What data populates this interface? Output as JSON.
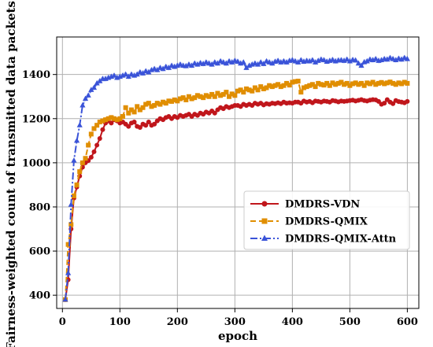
{
  "chart_data": {
    "type": "line",
    "title": "",
    "xlabel": "epoch",
    "ylabel": "Fairness-weighted count of transmitted data packets",
    "xlim": [
      -10,
      620
    ],
    "ylim": [
      340,
      1570
    ],
    "xticks": [
      0,
      100,
      200,
      300,
      400,
      500,
      600
    ],
    "yticks": [
      400,
      600,
      800,
      1000,
      1200,
      1400
    ],
    "grid": true,
    "legend_position": "center-right",
    "series": [
      {
        "name": "DMDRS-VDN",
        "color": "#c0161b",
        "band_color": "#f5a3c6",
        "marker": "circle",
        "dash": "solid",
        "x": [
          5,
          10,
          15,
          20,
          25,
          30,
          35,
          40,
          45,
          50,
          55,
          60,
          65,
          70,
          75,
          80,
          85,
          90,
          95,
          100,
          105,
          110,
          115,
          120,
          125,
          130,
          135,
          140,
          145,
          150,
          155,
          160,
          165,
          170,
          175,
          180,
          185,
          190,
          195,
          200,
          205,
          210,
          215,
          220,
          225,
          230,
          235,
          240,
          245,
          250,
          255,
          260,
          265,
          270,
          275,
          280,
          285,
          290,
          295,
          300,
          305,
          310,
          315,
          320,
          325,
          330,
          335,
          340,
          345,
          350,
          355,
          360,
          365,
          370,
          375,
          380,
          385,
          390,
          395,
          400,
          405,
          410,
          415,
          420,
          425,
          430,
          435,
          440,
          445,
          450,
          455,
          460,
          465,
          470,
          475,
          480,
          485,
          490,
          495,
          500,
          505,
          510,
          515,
          520,
          525,
          530,
          535,
          540,
          545,
          550,
          555,
          560,
          565,
          570,
          575,
          580,
          585,
          590,
          595,
          600
        ],
        "y": [
          380,
          470,
          700,
          840,
          890,
          940,
          980,
          1000,
          1010,
          1025,
          1050,
          1080,
          1110,
          1150,
          1180,
          1190,
          1180,
          1195,
          1190,
          1180,
          1185,
          1175,
          1165,
          1180,
          1185,
          1165,
          1160,
          1175,
          1170,
          1185,
          1170,
          1175,
          1190,
          1200,
          1195,
          1205,
          1210,
          1200,
          1210,
          1205,
          1215,
          1210,
          1215,
          1220,
          1210,
          1220,
          1215,
          1225,
          1220,
          1230,
          1225,
          1235,
          1225,
          1240,
          1250,
          1245,
          1255,
          1250,
          1255,
          1260,
          1260,
          1255,
          1265,
          1260,
          1265,
          1260,
          1270,
          1265,
          1270,
          1262,
          1268,
          1265,
          1270,
          1268,
          1272,
          1268,
          1275,
          1270,
          1272,
          1270,
          1275,
          1275,
          1270,
          1280,
          1275,
          1278,
          1272,
          1280,
          1278,
          1275,
          1280,
          1278,
          1275,
          1282,
          1280,
          1276,
          1280,
          1278,
          1280,
          1282,
          1284,
          1280,
          1283,
          1286,
          1282,
          1280,
          1284,
          1286,
          1285,
          1278,
          1265,
          1270,
          1286,
          1275,
          1268,
          1282,
          1277,
          1275,
          1272,
          1278
        ]
      },
      {
        "name": "DMDRS-QMIX",
        "color": "#e08e00",
        "band_color": "#f5a3c6",
        "marker": "square",
        "dash": "dashed",
        "x": [
          5,
          10,
          15,
          20,
          25,
          30,
          35,
          40,
          45,
          50,
          55,
          60,
          65,
          70,
          75,
          80,
          85,
          90,
          95,
          100,
          105,
          110,
          115,
          120,
          125,
          130,
          135,
          140,
          145,
          150,
          155,
          160,
          165,
          170,
          175,
          180,
          185,
          190,
          195,
          200,
          205,
          210,
          215,
          220,
          225,
          230,
          235,
          240,
          245,
          250,
          255,
          260,
          265,
          270,
          275,
          280,
          285,
          290,
          295,
          300,
          305,
          310,
          315,
          320,
          325,
          330,
          335,
          340,
          345,
          350,
          355,
          360,
          365,
          370,
          375,
          380,
          385,
          390,
          395,
          400,
          405,
          410,
          415,
          420,
          425,
          430,
          435,
          440,
          445,
          450,
          455,
          460,
          465,
          470,
          475,
          480,
          485,
          490,
          495,
          500,
          505,
          510,
          515,
          520,
          525,
          530,
          535,
          540,
          545,
          550,
          555,
          560,
          565,
          570,
          575,
          580,
          585,
          590,
          595,
          600
        ],
        "y": [
          380,
          630,
          720,
          850,
          900,
          960,
          1000,
          1020,
          1080,
          1130,
          1155,
          1170,
          1185,
          1190,
          1195,
          1200,
          1205,
          1200,
          1195,
          1200,
          1210,
          1250,
          1225,
          1240,
          1230,
          1255,
          1240,
          1250,
          1265,
          1270,
          1255,
          1260,
          1270,
          1265,
          1275,
          1270,
          1280,
          1278,
          1285,
          1280,
          1290,
          1295,
          1285,
          1300,
          1290,
          1295,
          1305,
          1300,
          1295,
          1305,
          1300,
          1310,
          1300,
          1315,
          1305,
          1310,
          1320,
          1300,
          1312,
          1305,
          1325,
          1330,
          1320,
          1335,
          1330,
          1325,
          1340,
          1330,
          1345,
          1335,
          1340,
          1350,
          1345,
          1350,
          1355,
          1345,
          1350,
          1360,
          1352,
          1365,
          1368,
          1370,
          1320,
          1340,
          1345,
          1350,
          1355,
          1345,
          1360,
          1355,
          1352,
          1360,
          1350,
          1362,
          1355,
          1360,
          1365,
          1355,
          1360,
          1350,
          1358,
          1362,
          1355,
          1360,
          1350,
          1362,
          1358,
          1365,
          1355,
          1360,
          1364,
          1358,
          1362,
          1366,
          1360,
          1355,
          1362,
          1358,
          1365,
          1360
        ]
      },
      {
        "name": "DMDRS-QMIX-Attn",
        "color": "#3a53d8",
        "band_color": "#8aa4f0",
        "marker": "triangle",
        "dash": "dashdot",
        "x": [
          5,
          10,
          15,
          20,
          25,
          30,
          35,
          40,
          45,
          50,
          55,
          60,
          65,
          70,
          75,
          80,
          85,
          90,
          95,
          100,
          105,
          110,
          115,
          120,
          125,
          130,
          135,
          140,
          145,
          150,
          155,
          160,
          165,
          170,
          175,
          180,
          185,
          190,
          195,
          200,
          205,
          210,
          215,
          220,
          225,
          230,
          235,
          240,
          245,
          250,
          255,
          260,
          265,
          270,
          275,
          280,
          285,
          290,
          295,
          300,
          305,
          310,
          315,
          320,
          325,
          330,
          335,
          340,
          345,
          350,
          355,
          360,
          365,
          370,
          375,
          380,
          385,
          390,
          395,
          400,
          405,
          410,
          415,
          420,
          425,
          430,
          435,
          440,
          445,
          450,
          455,
          460,
          465,
          470,
          475,
          480,
          485,
          490,
          495,
          500,
          505,
          510,
          515,
          520,
          525,
          530,
          535,
          540,
          545,
          550,
          555,
          560,
          565,
          570,
          575,
          580,
          585,
          590,
          595,
          600
        ],
        "y": [
          380,
          500,
          810,
          1010,
          1100,
          1170,
          1260,
          1290,
          1305,
          1330,
          1340,
          1360,
          1370,
          1380,
          1380,
          1385,
          1390,
          1395,
          1385,
          1390,
          1395,
          1400,
          1390,
          1400,
          1395,
          1400,
          1410,
          1405,
          1415,
          1410,
          1420,
          1425,
          1420,
          1430,
          1425,
          1435,
          1430,
          1440,
          1435,
          1440,
          1445,
          1440,
          1438,
          1445,
          1440,
          1450,
          1445,
          1452,
          1448,
          1455,
          1450,
          1445,
          1455,
          1450,
          1460,
          1455,
          1450,
          1460,
          1455,
          1462,
          1458,
          1450,
          1455,
          1430,
          1440,
          1445,
          1450,
          1445,
          1455,
          1448,
          1460,
          1455,
          1450,
          1458,
          1462,
          1455,
          1460,
          1455,
          1462,
          1465,
          1460,
          1455,
          1465,
          1458,
          1462,
          1460,
          1465,
          1455,
          1462,
          1468,
          1465,
          1458,
          1462,
          1466,
          1460,
          1464,
          1465,
          1462,
          1468,
          1460,
          1466,
          1464,
          1450,
          1440,
          1456,
          1460,
          1468,
          1465,
          1470,
          1462,
          1465,
          1470,
          1468,
          1475,
          1470,
          1465,
          1472,
          1468,
          1475,
          1470
        ]
      }
    ]
  }
}
